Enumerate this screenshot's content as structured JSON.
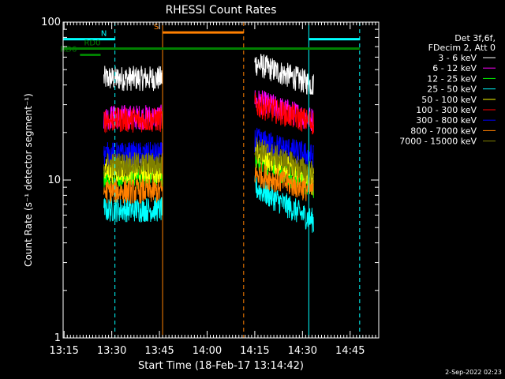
{
  "chart_data": {
    "type": "line",
    "title": "RHESSI Count Rates",
    "xlabel": "Start Time (18-Feb-17 13:14:42)",
    "ylabel": "Count Rate (s⁻¹ detector segment⁻¹)",
    "y_scale": "log",
    "ylim": [
      1,
      100
    ],
    "xlim": [
      "13:14:42",
      "14:54:00"
    ],
    "x_ticks": [
      "13:15",
      "13:30",
      "13:45",
      "14:00",
      "14:15",
      "14:30",
      "14:45"
    ],
    "y_ticks": [
      "1",
      "10",
      "100"
    ],
    "legend_position": "right",
    "legend_header": [
      "Det 3f,6f,",
      "FDecim 2, Att 0"
    ],
    "series": [
      {
        "name": "3 - 6 keV",
        "color": "#ffffff",
        "segment1": {
          "start": "13:27:30",
          "end": "13:46:00",
          "level": 44
        },
        "segment2": {
          "start": "14:15:00",
          "end": "14:33:30",
          "level_start": 55,
          "level_end": 40
        }
      },
      {
        "name": "6 - 12 keV",
        "color": "#ff00ff",
        "segment1": {
          "start": "13:27:30",
          "end": "13:46:00",
          "level": 25
        },
        "segment2": {
          "start": "14:15:00",
          "end": "14:33:30",
          "level_start": 32,
          "level_end": 24
        }
      },
      {
        "name": "12 - 25 keV",
        "color": "#00ff00",
        "segment1": {
          "start": "13:27:30",
          "end": "13:46:00",
          "level": 10.5
        },
        "segment2": {
          "start": "14:15:00",
          "end": "14:33:30",
          "level_start": 14,
          "level_end": 9
        }
      },
      {
        "name": "25 - 50 keV",
        "color": "#00ffff",
        "segment1": {
          "start": "13:27:30",
          "end": "13:46:00",
          "level": 6.5
        },
        "segment2": {
          "start": "14:15:00",
          "end": "14:33:30",
          "level_start": 9,
          "level_end": 5.5
        }
      },
      {
        "name": "50 - 100 keV",
        "color": "#ffff00",
        "segment1": {
          "start": "13:27:30",
          "end": "13:46:00",
          "level": 11.5
        },
        "segment2": {
          "start": "14:15:00",
          "end": "14:33:30",
          "level_start": 15,
          "level_end": 10
        }
      },
      {
        "name": "100 - 300 keV",
        "color": "#ff0000",
        "segment1": {
          "start": "13:27:30",
          "end": "13:46:00",
          "level": 24
        },
        "segment2": {
          "start": "14:15:00",
          "end": "14:33:30",
          "level_start": 30,
          "level_end": 23
        }
      },
      {
        "name": "300 - 800 keV",
        "color": "#0000ff",
        "segment1": {
          "start": "13:27:30",
          "end": "13:46:00",
          "level": 14.5
        },
        "segment2": {
          "start": "14:15:00",
          "end": "14:33:30",
          "level_start": 18,
          "level_end": 14
        }
      },
      {
        "name": "800 - 7000 keV",
        "color": "#ff8000",
        "segment1": {
          "start": "13:27:30",
          "end": "13:46:00",
          "level": 8.5
        },
        "segment2": {
          "start": "14:15:00",
          "end": "14:33:30",
          "level_start": 11,
          "level_end": 8.5
        }
      },
      {
        "name": "7000 - 15000 keV",
        "color": "#808000",
        "segment1": {
          "start": "13:27:30",
          "end": "13:46:00",
          "level": 12.5
        },
        "segment2": {
          "start": "14:15:00",
          "end": "14:33:30",
          "level_start": 16,
          "level_end": 11
        }
      }
    ],
    "flags": [
      {
        "label": "N",
        "color": "#00ffff",
        "y": 78,
        "intervals": [
          [
            "13:14:42",
            "13:31:00"
          ],
          [
            "14:32:00",
            "14:48:00"
          ]
        ]
      },
      {
        "label": "S",
        "color": "#ff8000",
        "y": 86,
        "intervals": [
          [
            "13:46:00",
            "14:11:30"
          ]
        ]
      },
      {
        "label": "RD0",
        "color": "#008000",
        "y": 68,
        "intervals": [
          [
            "13:14:42",
            "14:48:00"
          ]
        ]
      },
      {
        "label": "RD6",
        "color": "#008000",
        "y": 62,
        "intervals": [
          [
            "13:20:00",
            "13:26:30"
          ]
        ]
      }
    ],
    "vertical_lines": [
      {
        "time": "13:14:42",
        "color": "#00ffff",
        "style": "solid"
      },
      {
        "time": "13:31:00",
        "color": "#00ffff",
        "style": "dashed"
      },
      {
        "time": "13:46:00",
        "color": "#ff8000",
        "style": "solid"
      },
      {
        "time": "14:11:30",
        "color": "#ff8000",
        "style": "dashed"
      },
      {
        "time": "14:32:00",
        "color": "#00ffff",
        "style": "solid"
      },
      {
        "time": "14:48:00",
        "color": "#00ffff",
        "style": "dashed"
      }
    ],
    "footer_date": "2-Sep-2022 02:23"
  }
}
